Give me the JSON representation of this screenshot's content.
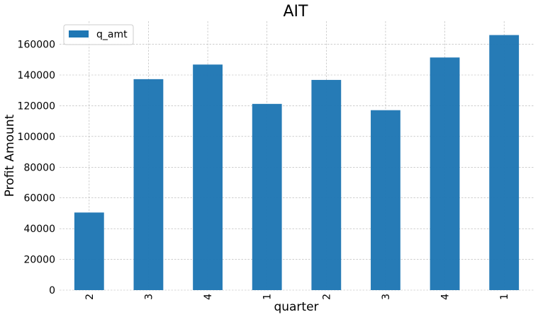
{
  "chart_data": {
    "type": "bar",
    "title": "AIT",
    "xlabel": "quarter",
    "ylabel": "Profit Amount",
    "categories": [
      "2",
      "3",
      "4",
      "1",
      "2",
      "3",
      "4",
      "1"
    ],
    "series": [
      {
        "name": "q_amt",
        "color": "#1f77b4",
        "values": [
          50500,
          137300,
          146800,
          121200,
          136800,
          117100,
          151400,
          166000
        ]
      }
    ],
    "ylim": [
      0,
      175000
    ],
    "yticks": [
      0,
      20000,
      40000,
      60000,
      80000,
      100000,
      120000,
      140000,
      160000
    ],
    "ytick_labels": [
      "0",
      "20000",
      "40000",
      "60000",
      "80000",
      "100000",
      "120000",
      "140000",
      "160000"
    ],
    "grid": true,
    "legend_position": "top-left"
  }
}
